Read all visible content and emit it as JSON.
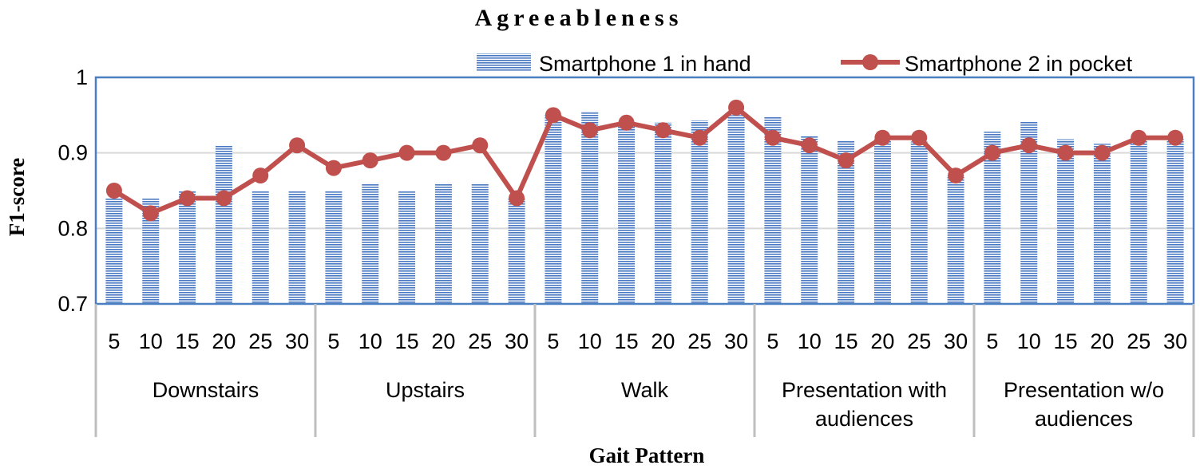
{
  "chart_data": {
    "type": "bar",
    "title": "Agreeableness",
    "xlabel": "Gait Pattern",
    "ylabel": "F1-score",
    "ylim": [
      0.7,
      1.0
    ],
    "yticks": [
      "0.7",
      "0.8",
      "0.9",
      "1"
    ],
    "grid": true,
    "legend_position": "top-right",
    "groups": [
      {
        "name": "Downstairs",
        "lines": [
          "Downstairs"
        ]
      },
      {
        "name": "Upstairs",
        "lines": [
          "Upstairs"
        ]
      },
      {
        "name": "Walk",
        "lines": [
          "Walk"
        ]
      },
      {
        "name": "Presentation with audiences",
        "lines": [
          "Presentation with",
          "audiences"
        ]
      },
      {
        "name": "Presentation w/o audiences",
        "lines": [
          "Presentation w/o",
          "audiences"
        ]
      }
    ],
    "categories": [
      "5",
      "10",
      "15",
      "20",
      "25",
      "30"
    ],
    "series": [
      {
        "name": "Smartphone 1 in hand",
        "kind": "bar",
        "color": "#4a78c2",
        "values": [
          [
            0.84,
            0.84,
            0.85,
            0.91,
            0.85,
            0.85
          ],
          [
            0.85,
            0.86,
            0.85,
            0.86,
            0.86,
            0.84
          ],
          [
            0.95,
            0.955,
            0.94,
            0.94,
            0.943,
            0.95
          ],
          [
            0.948,
            0.922,
            0.916,
            0.918,
            0.915,
            0.87
          ],
          [
            0.928,
            0.942,
            0.918,
            0.912,
            0.92,
            0.92
          ]
        ]
      },
      {
        "name": "Smartphone 2 in pocket",
        "kind": "line",
        "color": "#c0504d",
        "values": [
          [
            0.85,
            0.82,
            0.84,
            0.84,
            0.87,
            0.91
          ],
          [
            0.88,
            0.89,
            0.9,
            0.9,
            0.91,
            0.84
          ],
          [
            0.95,
            0.93,
            0.94,
            0.93,
            0.92,
            0.96
          ],
          [
            0.92,
            0.91,
            0.89,
            0.92,
            0.92,
            0.87
          ],
          [
            0.9,
            0.91,
            0.9,
            0.9,
            0.92,
            0.92
          ]
        ]
      }
    ]
  }
}
